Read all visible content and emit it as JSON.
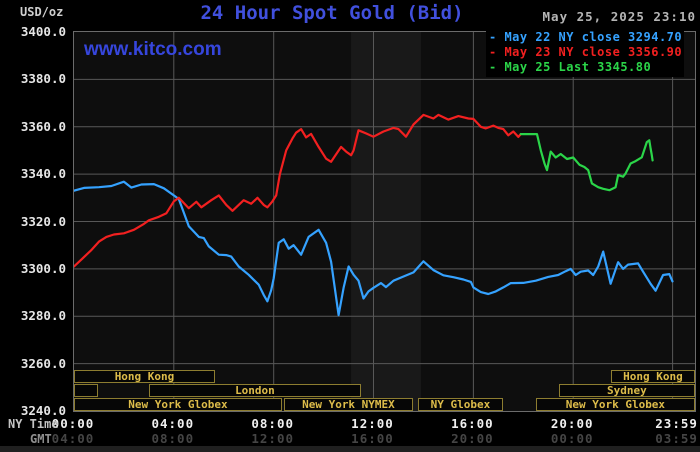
{
  "header": {
    "unit_label": "USD/oz",
    "title": "24 Hour Spot Gold (Bid)",
    "timestamp": "May 25, 2025 23:10",
    "watermark": "www.kitco.com"
  },
  "legend": [
    {
      "label": "- May 22 NY close 3294.70",
      "color": "#35a2ff"
    },
    {
      "label": "- May 23 NY close 3356.90",
      "color": "#f22020"
    },
    {
      "label": "- May 25 Last 3345.80",
      "color": "#2bd549"
    }
  ],
  "colors": {
    "title_blue": "#4150dd",
    "watermark_blue": "#3646dd",
    "grid": "#585858",
    "plot_border": "#6b6b6b",
    "plot_bg": "#0e0e0e",
    "plot_band_bg": "#191919",
    "session_border": "#8d7d30",
    "session_text": "#ddbc4a",
    "axis_text": "#e6e6e6",
    "gmt_text": "#454545"
  },
  "chart_data": {
    "type": "line",
    "title": "24 Hour Spot Gold (Bid)",
    "ylabel": "USD/oz",
    "ylim": [
      3240,
      3400
    ],
    "yticks": [
      3240,
      3260,
      3280,
      3300,
      3320,
      3340,
      3360,
      3380,
      3400
    ],
    "grid": true,
    "legend_position": "top-right",
    "x_axis": {
      "primary_label": "NY Time",
      "secondary_label": "GMT",
      "tick_hours": [
        0,
        4,
        8,
        12,
        16,
        20,
        23.983
      ],
      "primary_ticks": [
        "00:00",
        "04:00",
        "08:00",
        "12:00",
        "16:00",
        "20:00",
        "23:59"
      ],
      "secondary_ticks": [
        "04:00",
        "08:00",
        "12:00",
        "16:00",
        "20:00",
        "00:00",
        "03:59"
      ]
    },
    "highlight_band": {
      "start_h": 11.1,
      "end_h": 13.9
    },
    "series": [
      {
        "name": "May 22 NY close",
        "close": 3294.7,
        "color": "#35a2ff",
        "points": [
          [
            0,
            3333
          ],
          [
            0.4,
            3334.2
          ],
          [
            1,
            3334.5
          ],
          [
            1.5,
            3335
          ],
          [
            2,
            3336.8
          ],
          [
            2.3,
            3334.3
          ],
          [
            2.7,
            3335.6
          ],
          [
            3.2,
            3335.8
          ],
          [
            3.6,
            3334
          ],
          [
            4.0,
            3331
          ],
          [
            4.2,
            3329.5
          ],
          [
            4.6,
            3318
          ],
          [
            5.0,
            3313.5
          ],
          [
            5.2,
            3313
          ],
          [
            5.4,
            3309.5
          ],
          [
            5.8,
            3306
          ],
          [
            6.1,
            3305.8
          ],
          [
            6.3,
            3305.2
          ],
          [
            6.6,
            3301
          ],
          [
            7.0,
            3297.5
          ],
          [
            7.4,
            3293.3
          ],
          [
            7.6,
            3289
          ],
          [
            7.75,
            3286.3
          ],
          [
            7.9,
            3291
          ],
          [
            8.0,
            3296
          ],
          [
            8.2,
            3311
          ],
          [
            8.4,
            3312.5
          ],
          [
            8.6,
            3308.5
          ],
          [
            8.8,
            3310
          ],
          [
            9.1,
            3306
          ],
          [
            9.4,
            3313.5
          ],
          [
            9.8,
            3316.5
          ],
          [
            10.1,
            3311
          ],
          [
            10.3,
            3303
          ],
          [
            10.5,
            3288
          ],
          [
            10.6,
            3280.5
          ],
          [
            10.8,
            3292
          ],
          [
            11.0,
            3301
          ],
          [
            11.2,
            3297.5
          ],
          [
            11.4,
            3295
          ],
          [
            11.6,
            3287.5
          ],
          [
            11.8,
            3290.5
          ],
          [
            12.0,
            3292
          ],
          [
            12.3,
            3294
          ],
          [
            12.5,
            3292.3
          ],
          [
            12.8,
            3295
          ],
          [
            13.2,
            3296.8
          ],
          [
            13.6,
            3298.5
          ],
          [
            14.0,
            3303.2
          ],
          [
            14.4,
            3299.5
          ],
          [
            14.8,
            3297.3
          ],
          [
            15.2,
            3296.5
          ],
          [
            15.6,
            3295.5
          ],
          [
            15.9,
            3294.5
          ],
          [
            16.0,
            3292.2
          ],
          [
            16.3,
            3290.2
          ],
          [
            16.6,
            3289.4
          ],
          [
            16.9,
            3290.5
          ],
          [
            17.2,
            3292.2
          ],
          [
            17.5,
            3294
          ],
          [
            18.0,
            3294.1
          ],
          [
            18.5,
            3295
          ],
          [
            19.0,
            3296.6
          ],
          [
            19.4,
            3297.4
          ],
          [
            19.7,
            3299
          ],
          [
            19.9,
            3300
          ],
          [
            20.1,
            3297.4
          ],
          [
            20.3,
            3298.8
          ],
          [
            20.6,
            3299.3
          ],
          [
            20.8,
            3297.4
          ],
          [
            21.0,
            3301
          ],
          [
            21.2,
            3307.3
          ],
          [
            21.5,
            3293.7
          ],
          [
            21.8,
            3302.8
          ],
          [
            22.0,
            3300
          ],
          [
            22.2,
            3301.8
          ],
          [
            22.6,
            3302.3
          ],
          [
            22.8,
            3298.8
          ],
          [
            23.1,
            3293.7
          ],
          [
            23.3,
            3290.8
          ],
          [
            23.6,
            3297.4
          ],
          [
            23.85,
            3297.8
          ],
          [
            23.98,
            3294.7
          ]
        ]
      },
      {
        "name": "May 23 NY close",
        "close": 3356.9,
        "color": "#f22020",
        "points": [
          [
            0,
            3301
          ],
          [
            0.3,
            3304
          ],
          [
            0.7,
            3308
          ],
          [
            1.0,
            3311.5
          ],
          [
            1.3,
            3313.5
          ],
          [
            1.6,
            3314.5
          ],
          [
            2.0,
            3315
          ],
          [
            2.4,
            3316.5
          ],
          [
            2.8,
            3319
          ],
          [
            3.0,
            3320.5
          ],
          [
            3.4,
            3322
          ],
          [
            3.7,
            3323.5
          ],
          [
            4.0,
            3328.5
          ],
          [
            4.2,
            3330
          ],
          [
            4.6,
            3325.6
          ],
          [
            4.9,
            3328.3
          ],
          [
            5.1,
            3326
          ],
          [
            5.5,
            3329
          ],
          [
            5.8,
            3331
          ],
          [
            6.1,
            3327
          ],
          [
            6.35,
            3324.5
          ],
          [
            6.8,
            3329
          ],
          [
            7.1,
            3327.5
          ],
          [
            7.35,
            3330
          ],
          [
            7.6,
            3327
          ],
          [
            7.75,
            3326
          ],
          [
            7.95,
            3328.5
          ],
          [
            8.1,
            3331
          ],
          [
            8.25,
            3340
          ],
          [
            8.5,
            3350
          ],
          [
            8.75,
            3355
          ],
          [
            8.9,
            3357.5
          ],
          [
            9.1,
            3359
          ],
          [
            9.3,
            3355.5
          ],
          [
            9.5,
            3357
          ],
          [
            9.8,
            3351.5
          ],
          [
            10.1,
            3346.5
          ],
          [
            10.3,
            3345.2
          ],
          [
            10.7,
            3351.5
          ],
          [
            10.9,
            3349.5
          ],
          [
            11.1,
            3348
          ],
          [
            11.2,
            3350
          ],
          [
            11.4,
            3358.5
          ],
          [
            11.7,
            3357.2
          ],
          [
            12.0,
            3355.8
          ],
          [
            12.4,
            3358
          ],
          [
            12.8,
            3359.5
          ],
          [
            13.0,
            3359
          ],
          [
            13.3,
            3355.8
          ],
          [
            13.6,
            3361
          ],
          [
            14.0,
            3365
          ],
          [
            14.4,
            3363.5
          ],
          [
            14.6,
            3365
          ],
          [
            15.0,
            3363
          ],
          [
            15.4,
            3364.5
          ],
          [
            15.8,
            3363.5
          ],
          [
            16.0,
            3363.3
          ],
          [
            16.3,
            3360
          ],
          [
            16.5,
            3359.3
          ],
          [
            16.8,
            3360.5
          ],
          [
            17.0,
            3359.5
          ],
          [
            17.2,
            3359
          ],
          [
            17.4,
            3356.4
          ],
          [
            17.6,
            3358
          ],
          [
            17.8,
            3355.7
          ],
          [
            17.9,
            3356.9
          ]
        ]
      },
      {
        "name": "May 25 Last",
        "close": 3345.8,
        "color": "#2bd549",
        "points": [
          [
            17.9,
            3356.9
          ],
          [
            18.55,
            3356.9
          ],
          [
            18.7,
            3350
          ],
          [
            18.85,
            3344.5
          ],
          [
            18.95,
            3341.7
          ],
          [
            19.1,
            3349.5
          ],
          [
            19.3,
            3347
          ],
          [
            19.5,
            3348.5
          ],
          [
            19.75,
            3346.4
          ],
          [
            20.0,
            3347
          ],
          [
            20.25,
            3344
          ],
          [
            20.45,
            3343
          ],
          [
            20.6,
            3341.7
          ],
          [
            20.75,
            3336.1
          ],
          [
            21.0,
            3334.5
          ],
          [
            21.2,
            3333.8
          ],
          [
            21.45,
            3333.2
          ],
          [
            21.7,
            3334.5
          ],
          [
            21.8,
            3339.6
          ],
          [
            22.0,
            3338.9
          ],
          [
            22.1,
            3340.3
          ],
          [
            22.3,
            3344.5
          ],
          [
            22.5,
            3345.5
          ],
          [
            22.75,
            3347.1
          ],
          [
            22.95,
            3353.5
          ],
          [
            23.05,
            3354.3
          ],
          [
            23.1,
            3350.8
          ],
          [
            23.14,
            3348.5
          ],
          [
            23.18,
            3345.8
          ]
        ]
      }
    ],
    "sessions": [
      {
        "row": 0,
        "label": "Hong Kong",
        "start_h": 0,
        "end_h": 5.65
      },
      {
        "row": 0,
        "label": "Hong Kong",
        "start_h": 21.52,
        "end_h": 24.87
      },
      {
        "row": 1,
        "label": "",
        "start_h": 0,
        "end_h": 0.96
      },
      {
        "row": 1,
        "label": "London",
        "start_h": 3.0,
        "end_h": 11.5
      },
      {
        "row": 1,
        "label": "Sydney",
        "start_h": 19.43,
        "end_h": 24.87
      },
      {
        "row": 2,
        "label": "New York Globex",
        "start_h": 0,
        "end_h": 8.33
      },
      {
        "row": 2,
        "label": "New York NYMEX",
        "start_h": 8.41,
        "end_h": 13.58
      },
      {
        "row": 2,
        "label": "NY Globex",
        "start_h": 13.78,
        "end_h": 17.19
      },
      {
        "row": 2,
        "label": "New York Globex",
        "start_h": 18.51,
        "end_h": 24.87
      }
    ]
  }
}
